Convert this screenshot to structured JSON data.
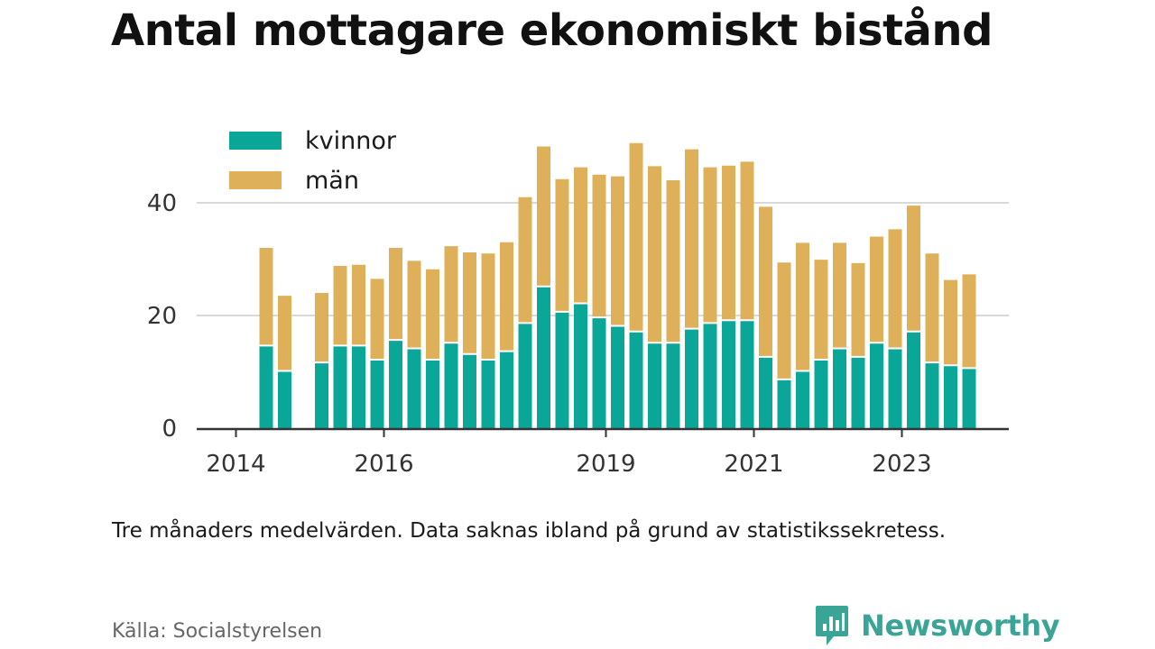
{
  "title": "Antal mottagare ekonomiskt bistånd",
  "note": "Tre månaders medelvärden. Data saknas ibland på grund av statistikssekretess.",
  "source": "Källa: Socialstyrelsen",
  "brand": "Newsworthy",
  "colors": {
    "kvinnor": "#0aa799",
    "man": "#ddb059",
    "axis": "#333333",
    "grid": "#d9d9d9",
    "brand": "#3aa597"
  },
  "chart_data": {
    "type": "bar",
    "stacked": true,
    "ylim": [
      0,
      50
    ],
    "yticks": [
      0,
      20,
      40
    ],
    "grid": true,
    "legend_position": "top-left",
    "xtick_labels": [
      "2014",
      "2016",
      "2019",
      "2021",
      "2023"
    ],
    "xtick_positions": [
      2014.0,
      2016.0,
      2019.0,
      2021.0,
      2023.0
    ],
    "x": [
      2014.25,
      2014.5,
      2015.0,
      2015.25,
      2015.5,
      2015.75,
      2016.0,
      2016.25,
      2016.5,
      2016.75,
      2017.0,
      2017.25,
      2017.5,
      2017.75,
      2018.0,
      2018.25,
      2018.5,
      2018.75,
      2019.0,
      2019.25,
      2019.5,
      2019.75,
      2020.0,
      2020.25,
      2020.5,
      2020.75,
      2021.0,
      2021.25,
      2021.5,
      2021.75,
      2022.0,
      2022.25,
      2022.5,
      2022.75,
      2023.0,
      2023.25,
      2023.5,
      2023.75
    ],
    "series": [
      {
        "name": "kvinnor",
        "values": [
          14.5,
          10,
          11.5,
          14.5,
          14.5,
          12,
          15.5,
          14,
          12,
          15,
          13,
          12,
          13.5,
          18.5,
          25,
          20.5,
          22,
          19.5,
          18,
          17,
          15,
          15,
          17.5,
          18.5,
          19,
          19,
          12.5,
          8.5,
          10,
          12,
          14,
          12.5,
          15,
          14,
          17,
          11.5,
          11,
          10.5
        ]
      },
      {
        "name": "män",
        "values": [
          17.5,
          13.5,
          12.5,
          14.3,
          14.5,
          14.5,
          16.5,
          15.7,
          16.2,
          17.3,
          18.2,
          19,
          19.5,
          22.5,
          25,
          23.7,
          24.3,
          25.5,
          26.7,
          33.6,
          31.5,
          29,
          32,
          27.8,
          27.6,
          28.3,
          26.8,
          20.9,
          22.9,
          17.9,
          18.9,
          16.8,
          19,
          21.3,
          22.5,
          19.5,
          15.3,
          16.8
        ]
      }
    ]
  }
}
